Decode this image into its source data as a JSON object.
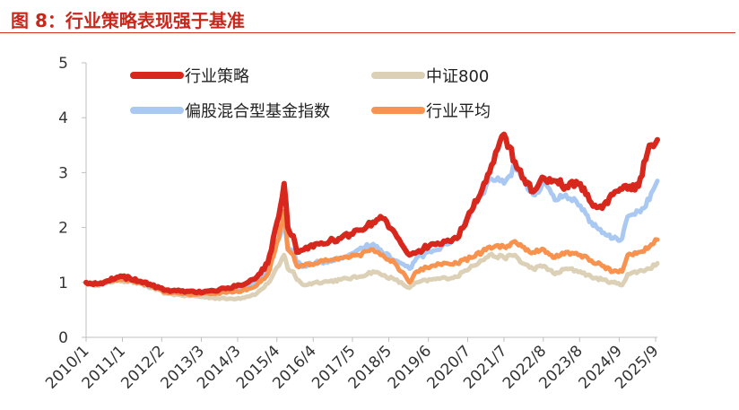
{
  "figure": {
    "title": "图 8：行业策略表现强于基准"
  },
  "chart_data": {
    "type": "line",
    "title": "图 8：行业策略表现强于基准",
    "xlabel": "",
    "ylabel": "",
    "ylim": [
      0,
      5
    ],
    "y_ticks": [
      "0",
      "1",
      "2",
      "3",
      "4",
      "5"
    ],
    "x_range": [
      2010.0,
      2025.72
    ],
    "x_tick_labels": [
      "2010/1",
      "2011/1",
      "2012/2",
      "2013/3",
      "2014/3",
      "2015/4",
      "2016/4",
      "2017/5",
      "2018/5",
      "2019/6",
      "2020/7",
      "2021/7",
      "2022/8",
      "2023/8",
      "2024/9",
      "2025/9"
    ],
    "x_tick_positions": [
      2010.0,
      2011.0,
      2012.08,
      2013.17,
      2014.17,
      2015.25,
      2016.25,
      2017.33,
      2018.33,
      2019.42,
      2020.5,
      2021.5,
      2022.58,
      2023.58,
      2024.67,
      2025.67
    ],
    "grid": false,
    "legend_position": "top",
    "series": [
      {
        "name": "中证800",
        "color": "#dcd0b6",
        "x": [
          2010.0,
          2010.3,
          2010.6,
          2010.9,
          2011.2,
          2011.5,
          2011.8,
          2012.2,
          2012.6,
          2013.0,
          2013.5,
          2013.9,
          2014.3,
          2014.7,
          2015.0,
          2015.3,
          2015.45,
          2015.55,
          2015.7,
          2015.8,
          2016.0,
          2016.3,
          2016.7,
          2017.0,
          2017.5,
          2017.9,
          2018.1,
          2018.5,
          2018.9,
          2019.1,
          2019.5,
          2019.9,
          2020.2,
          2020.6,
          2020.9,
          2021.1,
          2021.5,
          2021.8,
          2022.0,
          2022.3,
          2022.6,
          2022.9,
          2023.2,
          2023.6,
          2023.9,
          2024.2,
          2024.5,
          2024.75,
          2024.9,
          2025.2,
          2025.5,
          2025.72
        ],
        "values": [
          1.0,
          0.95,
          1.0,
          1.04,
          1.02,
          0.97,
          0.9,
          0.8,
          0.77,
          0.75,
          0.72,
          0.7,
          0.72,
          0.8,
          0.98,
          1.3,
          1.5,
          1.25,
          1.2,
          1.05,
          0.95,
          1.0,
          1.02,
          1.05,
          1.1,
          1.2,
          1.15,
          1.05,
          0.9,
          1.0,
          1.05,
          1.08,
          1.1,
          1.3,
          1.4,
          1.5,
          1.45,
          1.5,
          1.35,
          1.25,
          1.3,
          1.15,
          1.25,
          1.2,
          1.1,
          1.05,
          1.0,
          0.95,
          1.15,
          1.2,
          1.25,
          1.35
        ]
      },
      {
        "name": "偏股混合型基金指数",
        "color": "#a9c8f2",
        "x": [
          2010.0,
          2010.3,
          2010.6,
          2010.9,
          2011.2,
          2011.5,
          2011.8,
          2012.2,
          2012.6,
          2013.0,
          2013.5,
          2013.9,
          2014.3,
          2014.7,
          2015.0,
          2015.3,
          2015.45,
          2015.55,
          2015.7,
          2015.8,
          2016.0,
          2016.3,
          2016.7,
          2017.0,
          2017.5,
          2017.9,
          2018.1,
          2018.5,
          2018.9,
          2019.1,
          2019.5,
          2019.9,
          2020.2,
          2020.6,
          2020.9,
          2021.1,
          2021.5,
          2021.8,
          2022.0,
          2022.3,
          2022.6,
          2022.9,
          2023.2,
          2023.6,
          2023.9,
          2024.2,
          2024.5,
          2024.75,
          2024.9,
          2025.2,
          2025.5,
          2025.72
        ],
        "values": [
          1.0,
          0.97,
          1.02,
          1.07,
          1.06,
          1.0,
          0.93,
          0.83,
          0.82,
          0.8,
          0.85,
          0.88,
          0.9,
          1.0,
          1.2,
          1.8,
          2.1,
          1.6,
          1.55,
          1.35,
          1.3,
          1.35,
          1.4,
          1.45,
          1.6,
          1.7,
          1.6,
          1.4,
          1.25,
          1.45,
          1.55,
          1.7,
          1.8,
          2.3,
          2.6,
          2.9,
          2.8,
          3.1,
          2.9,
          2.6,
          2.8,
          2.5,
          2.6,
          2.4,
          2.1,
          1.9,
          1.8,
          1.8,
          2.2,
          2.3,
          2.5,
          2.85
        ]
      },
      {
        "name": "行业平均",
        "color": "#f7924f",
        "x": [
          2010.0,
          2010.3,
          2010.6,
          2010.9,
          2011.2,
          2011.5,
          2011.8,
          2012.2,
          2012.6,
          2013.0,
          2013.5,
          2013.9,
          2014.3,
          2014.7,
          2015.0,
          2015.3,
          2015.45,
          2015.55,
          2015.7,
          2015.8,
          2016.0,
          2016.3,
          2016.7,
          2017.0,
          2017.5,
          2017.9,
          2018.1,
          2018.5,
          2018.9,
          2019.1,
          2019.5,
          2019.9,
          2020.2,
          2020.6,
          2020.9,
          2021.1,
          2021.5,
          2021.8,
          2022.0,
          2022.3,
          2022.6,
          2022.9,
          2023.2,
          2023.6,
          2023.9,
          2024.2,
          2024.5,
          2024.75,
          2024.9,
          2025.2,
          2025.5,
          2025.72
        ],
        "values": [
          1.0,
          0.97,
          1.02,
          1.06,
          1.05,
          0.99,
          0.92,
          0.82,
          0.8,
          0.78,
          0.8,
          0.82,
          0.85,
          0.95,
          1.15,
          1.8,
          2.3,
          1.6,
          1.5,
          1.3,
          1.3,
          1.35,
          1.4,
          1.45,
          1.5,
          1.6,
          1.5,
          1.35,
          1.0,
          1.2,
          1.3,
          1.35,
          1.35,
          1.45,
          1.55,
          1.65,
          1.65,
          1.75,
          1.65,
          1.55,
          1.6,
          1.45,
          1.55,
          1.5,
          1.4,
          1.3,
          1.2,
          1.2,
          1.5,
          1.55,
          1.65,
          1.78
        ]
      },
      {
        "name": "行业策略",
        "color": "#d8271c",
        "x": [
          2010.0,
          2010.3,
          2010.6,
          2010.9,
          2011.2,
          2011.5,
          2011.8,
          2012.2,
          2012.6,
          2013.0,
          2013.5,
          2013.9,
          2014.3,
          2014.7,
          2015.0,
          2015.3,
          2015.45,
          2015.55,
          2015.7,
          2015.8,
          2016.0,
          2016.3,
          2016.7,
          2017.0,
          2017.5,
          2017.9,
          2018.1,
          2018.5,
          2018.9,
          2019.1,
          2019.5,
          2019.9,
          2020.2,
          2020.6,
          2020.9,
          2021.1,
          2021.5,
          2021.8,
          2022.0,
          2022.3,
          2022.6,
          2022.9,
          2023.2,
          2023.6,
          2023.9,
          2024.2,
          2024.5,
          2024.75,
          2024.9,
          2025.2,
          2025.5,
          2025.72
        ],
        "values": [
          1.0,
          0.97,
          1.03,
          1.1,
          1.08,
          1.02,
          0.95,
          0.86,
          0.84,
          0.82,
          0.85,
          0.9,
          0.95,
          1.1,
          1.35,
          2.2,
          2.8,
          2.0,
          1.85,
          1.55,
          1.6,
          1.7,
          1.75,
          1.8,
          1.95,
          2.1,
          2.2,
          1.9,
          1.5,
          1.55,
          1.7,
          1.75,
          1.8,
          2.3,
          2.7,
          3.0,
          3.7,
          3.2,
          2.9,
          2.65,
          2.9,
          2.85,
          2.75,
          2.8,
          2.45,
          2.35,
          2.6,
          2.7,
          2.7,
          2.75,
          3.5,
          3.6
        ]
      }
    ]
  }
}
